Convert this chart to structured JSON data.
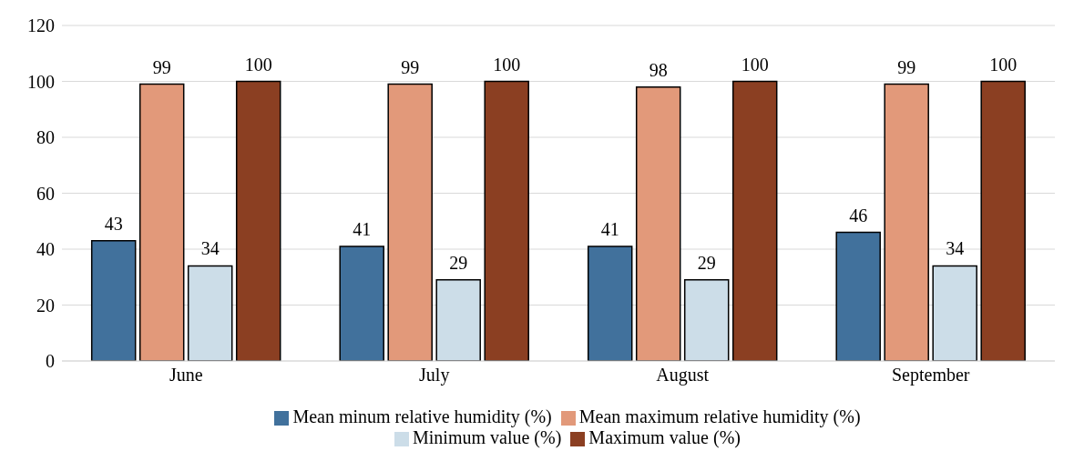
{
  "chart_data": {
    "type": "bar",
    "categories": [
      "June",
      "July",
      "August",
      "September"
    ],
    "series": [
      {
        "name": "Mean minum relative humidity (%)",
        "color": "#41719c",
        "values": [
          43,
          41,
          41,
          46
        ]
      },
      {
        "name": "Mean maximum relative humidity (%)",
        "color": "#e2997a",
        "values": [
          99,
          99,
          98,
          99
        ]
      },
      {
        "name": "Minimum value (%)",
        "color": "#ccdde8",
        "values": [
          34,
          29,
          29,
          34
        ]
      },
      {
        "name": "Maximum value (%)",
        "color": "#8b3f22",
        "values": [
          100,
          100,
          100,
          100
        ]
      }
    ],
    "ylim": [
      0,
      120
    ],
    "yticks": [
      0,
      20,
      40,
      60,
      80,
      100,
      120
    ],
    "grid": "y",
    "legend": "bottom",
    "data_labels": true
  }
}
